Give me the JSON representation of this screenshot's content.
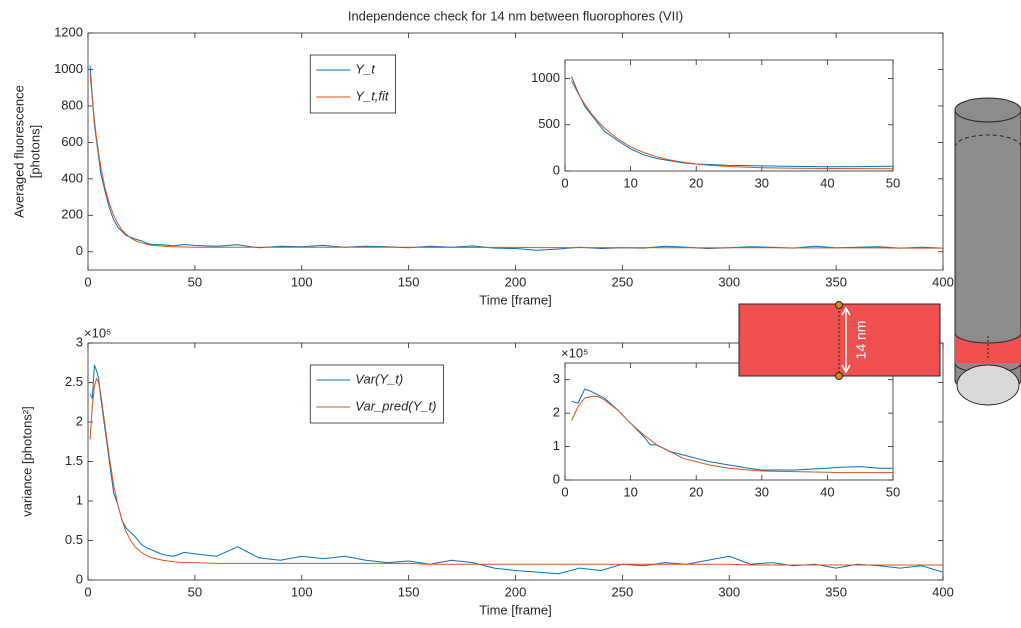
{
  "chart_data": [
    {
      "type": "line",
      "title": "Independence check for 14 nm between fluorophores (VII)",
      "ylabel": [
        "Averaged fluorescence",
        "[photons]"
      ],
      "xlabel": "Time [frame]",
      "x": [
        1,
        2,
        3,
        4,
        5,
        6,
        8,
        10,
        12,
        14,
        16,
        18,
        20,
        22,
        25,
        28,
        30,
        35,
        40,
        45,
        50,
        60,
        70,
        80,
        90,
        100,
        110,
        120,
        130,
        140,
        150,
        160,
        170,
        180,
        190,
        200,
        210,
        220,
        230,
        240,
        250,
        260,
        270,
        280,
        290,
        300,
        310,
        320,
        330,
        340,
        350,
        360,
        370,
        380,
        390,
        400
      ],
      "series": [
        {
          "name": "Y_t",
          "color": "#0072BD",
          "values": [
            1020,
            850,
            700,
            610,
            520,
            430,
            330,
            240,
            175,
            135,
            110,
            88,
            80,
            70,
            60,
            45,
            40,
            38,
            32,
            40,
            35,
            30,
            38,
            22,
            30,
            28,
            35,
            25,
            30,
            28,
            22,
            30,
            25,
            32,
            20,
            18,
            8,
            15,
            25,
            18,
            22,
            20,
            30,
            25,
            18,
            22,
            28,
            25,
            20,
            30,
            22,
            25,
            28,
            20,
            25,
            20
          ]
        },
        {
          "name": "Y_t,fit",
          "color": "#D95319",
          "values": [
            975,
            839,
            723,
            624,
            538,
            465,
            348,
            263,
            200,
            153,
            119,
            94,
            76,
            62,
            49,
            40,
            36,
            30,
            27,
            26,
            25,
            25,
            25,
            25,
            25,
            25,
            25,
            25,
            25,
            25,
            25,
            24,
            24,
            24,
            24,
            24,
            23,
            23,
            23,
            23,
            23,
            23,
            22,
            22,
            22,
            22,
            22,
            22,
            21,
            21,
            21,
            21,
            21,
            20,
            20,
            20
          ]
        }
      ],
      "xlim": [
        0,
        400
      ],
      "xticks": [
        0,
        50,
        100,
        150,
        200,
        250,
        300,
        350,
        400
      ],
      "ylim": [
        -100,
        1200
      ],
      "yticks": [
        0,
        200,
        400,
        600,
        800,
        1000,
        1200
      ],
      "legend": "upper-center"
    },
    {
      "type": "line",
      "x": [
        1,
        2,
        3,
        4,
        5,
        6,
        8,
        10,
        12,
        14,
        16,
        18,
        20,
        22,
        25,
        28,
        30,
        35,
        40,
        45,
        50
      ],
      "series": [
        {
          "color": "#0072BD",
          "values": [
            1020,
            850,
            700,
            610,
            520,
            430,
            330,
            240,
            175,
            135,
            110,
            88,
            75,
            70,
            60,
            58,
            55,
            50,
            45,
            48,
            52
          ]
        },
        {
          "color": "#D95319",
          "values": [
            975,
            839,
            723,
            624,
            538,
            465,
            348,
            263,
            200,
            153,
            119,
            94,
            76,
            62,
            49,
            40,
            36,
            30,
            27,
            26,
            25
          ]
        }
      ],
      "xlim": [
        0,
        50
      ],
      "xticks": [
        0,
        10,
        20,
        30,
        40,
        50
      ],
      "ylim": [
        0,
        1200
      ],
      "yticks": [
        0,
        500,
        1000
      ]
    },
    {
      "type": "line",
      "ylabel": [
        "variance [photons²]"
      ],
      "xlabel": "Time [frame]",
      "y_multiplier": "×10⁵",
      "x": [
        1,
        2,
        3,
        4,
        5,
        6,
        8,
        10,
        12,
        14,
        16,
        18,
        20,
        22,
        25,
        28,
        30,
        35,
        40,
        45,
        50,
        60,
        70,
        80,
        90,
        100,
        110,
        120,
        130,
        140,
        150,
        160,
        170,
        180,
        190,
        200,
        210,
        220,
        230,
        240,
        250,
        260,
        270,
        280,
        290,
        300,
        310,
        320,
        330,
        340,
        350,
        360,
        370,
        380,
        390,
        400
      ],
      "series": [
        {
          "name": "Var(Y_t)",
          "color": "#0072BD",
          "values": [
            2.35,
            2.3,
            2.72,
            2.65,
            2.55,
            2.3,
            1.9,
            1.5,
            1.1,
            0.95,
            0.75,
            0.65,
            0.6,
            0.55,
            0.45,
            0.4,
            0.38,
            0.32,
            0.3,
            0.35,
            0.33,
            0.3,
            0.42,
            0.28,
            0.25,
            0.3,
            0.27,
            0.3,
            0.25,
            0.22,
            0.24,
            0.2,
            0.25,
            0.22,
            0.15,
            0.12,
            0.1,
            0.08,
            0.15,
            0.12,
            0.2,
            0.18,
            0.22,
            0.2,
            0.25,
            0.3,
            0.2,
            0.22,
            0.18,
            0.2,
            0.15,
            0.2,
            0.18,
            0.15,
            0.18,
            0.1
          ]
        },
        {
          "name": "Var_pred(Y_t)",
          "color": "#D95319",
          "values": [
            1.78,
            2.2,
            2.45,
            2.55,
            2.5,
            2.35,
            1.95,
            1.55,
            1.2,
            0.95,
            0.75,
            0.6,
            0.5,
            0.42,
            0.35,
            0.3,
            0.28,
            0.25,
            0.23,
            0.22,
            0.22,
            0.21,
            0.21,
            0.21,
            0.21,
            0.21,
            0.21,
            0.21,
            0.21,
            0.21,
            0.21,
            0.2,
            0.2,
            0.2,
            0.2,
            0.2,
            0.2,
            0.2,
            0.2,
            0.2,
            0.2,
            0.2,
            0.2,
            0.2,
            0.2,
            0.2,
            0.19,
            0.19,
            0.19,
            0.19,
            0.19,
            0.19,
            0.19,
            0.19,
            0.19,
            0.19
          ]
        }
      ],
      "xlim": [
        0,
        400
      ],
      "xticks": [
        0,
        50,
        100,
        150,
        200,
        250,
        300,
        350,
        400
      ],
      "ylim": [
        0,
        3
      ],
      "yticks": [
        0,
        0.5,
        1,
        1.5,
        2,
        2.5,
        3
      ],
      "legend": "upper-center"
    },
    {
      "type": "line",
      "y_multiplier": "×10⁵",
      "x": [
        1,
        2,
        3,
        4,
        5,
        6,
        8,
        10,
        12,
        13,
        14,
        16,
        18,
        20,
        22,
        25,
        28,
        30,
        35,
        40,
        42,
        45,
        48,
        50
      ],
      "series": [
        {
          "color": "#0072BD",
          "values": [
            2.35,
            2.3,
            2.72,
            2.65,
            2.55,
            2.45,
            2.1,
            1.7,
            1.3,
            1.05,
            1.05,
            0.85,
            0.75,
            0.65,
            0.55,
            0.45,
            0.35,
            0.3,
            0.3,
            0.35,
            0.38,
            0.4,
            0.35,
            0.35
          ]
        },
        {
          "color": "#D95319",
          "values": [
            1.78,
            2.2,
            2.45,
            2.5,
            2.5,
            2.4,
            2.1,
            1.7,
            1.35,
            1.2,
            1.05,
            0.85,
            0.65,
            0.55,
            0.45,
            0.35,
            0.3,
            0.27,
            0.25,
            0.23,
            0.22,
            0.22,
            0.22,
            0.22
          ]
        }
      ],
      "xlim": [
        0,
        50
      ],
      "xticks": [
        0,
        10,
        20,
        30,
        40,
        50
      ],
      "ylim": [
        0,
        3.5
      ],
      "yticks": [
        0,
        1,
        2,
        3
      ]
    }
  ],
  "diagram": {
    "label": "14 nm"
  }
}
